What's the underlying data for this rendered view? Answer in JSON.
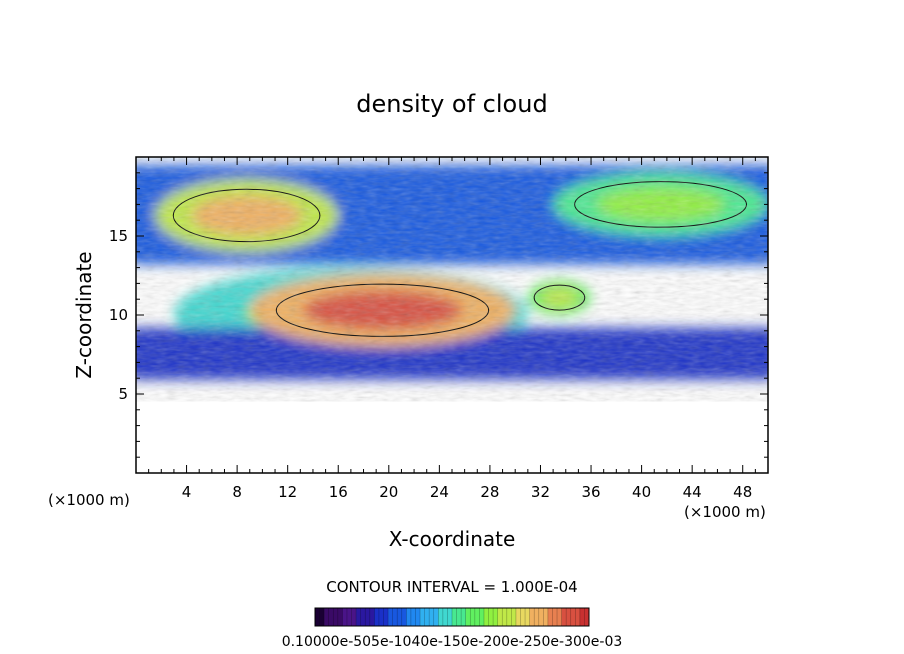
{
  "chart_data": {
    "type": "heatmap",
    "title": "density of cloud",
    "xlabel": "X-coordinate",
    "ylabel": "Z-coordinate",
    "x_unit_left": "(×1000 m)",
    "x_unit_right": "(×1000 m)",
    "xlim": [
      0,
      50
    ],
    "ylim": [
      0,
      20
    ],
    "x_ticks": [
      4,
      8,
      12,
      16,
      20,
      24,
      28,
      32,
      36,
      40,
      44,
      48
    ],
    "y_ticks": [
      5,
      10,
      15
    ],
    "contour_interval_text": "CONTOUR INTERVAL = 1.000E-04",
    "colorbar": {
      "min": 0.0001,
      "max": 0.0003,
      "label_text": "0.10000e-505e-1040e-150e-200e-250e-300e-03",
      "colors": [
        "#1a0033",
        "#3a0a66",
        "#4a1488",
        "#2a18a0",
        "#1a30c8",
        "#1858e0",
        "#2088f0",
        "#30b0f0",
        "#40d8d0",
        "#48e890",
        "#60f060",
        "#90f040",
        "#c0e848",
        "#e8d860",
        "#f0b060",
        "#e88050",
        "#d85040",
        "#c83030"
      ]
    },
    "cloud_regions": [
      {
        "name": "upper cloud layer",
        "x": [
          0,
          50
        ],
        "z": [
          13.2,
          19.5
        ],
        "density": 0.3
      },
      {
        "name": "mid-level cloud body",
        "x": [
          3,
          31
        ],
        "z": [
          7.2,
          13
        ],
        "density": 0.45
      },
      {
        "name": "lower cloud base",
        "x": [
          0,
          50
        ],
        "z": [
          5.9,
          9.2
        ],
        "density": 0.25
      },
      {
        "name": "upper-left core",
        "x": [
          1.5,
          16
        ],
        "z": [
          14,
          18.6
        ],
        "density": 0.7
      },
      {
        "name": "mid core",
        "x": [
          9,
          30
        ],
        "z": [
          8,
          12.6
        ],
        "density": 0.85
      },
      {
        "name": "right patch",
        "x": [
          31,
          36
        ],
        "z": [
          10,
          12.2
        ],
        "density": 0.6
      },
      {
        "name": "upper-right blob",
        "x": [
          33,
          50
        ],
        "z": [
          15,
          19
        ],
        "density": 0.55
      }
    ]
  }
}
